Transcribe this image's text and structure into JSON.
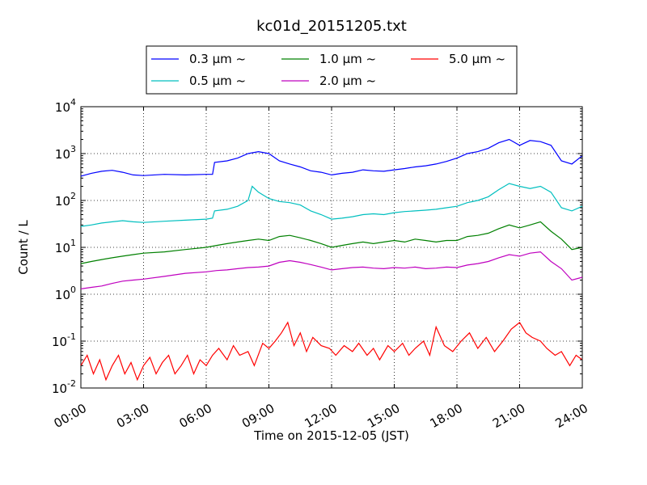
{
  "chart_data": {
    "type": "line",
    "title": "kc01d_20151205.txt",
    "xlabel": "Time on 2015-12-05 (JST)",
    "ylabel": "Count / L",
    "x_unit": "hours",
    "xlim": [
      0,
      24
    ],
    "ylim": [
      0.01,
      10000
    ],
    "yscale": "log",
    "grid": true,
    "legend_position": "top-center",
    "x_tick_labels": [
      "00:00",
      "03:00",
      "06:00",
      "09:00",
      "12:00",
      "15:00",
      "18:00",
      "21:00",
      "24:00"
    ],
    "y_tick_labels": [
      {
        "base": "10",
        "exp": "-2"
      },
      {
        "base": "10",
        "exp": "-1"
      },
      {
        "base": "10",
        "exp": "0"
      },
      {
        "base": "10",
        "exp": "1"
      },
      {
        "base": "10",
        "exp": "2"
      },
      {
        "base": "10",
        "exp": "3"
      },
      {
        "base": "10",
        "exp": "4"
      }
    ],
    "series": [
      {
        "name": "0.3 μm ~",
        "color": "#0000ff",
        "points": [
          [
            0,
            330
          ],
          [
            0.5,
            380
          ],
          [
            1,
            420
          ],
          [
            1.5,
            440
          ],
          [
            2,
            400
          ],
          [
            2.5,
            350
          ],
          [
            3,
            340
          ],
          [
            4,
            360
          ],
          [
            5,
            350
          ],
          [
            6,
            360
          ],
          [
            6.3,
            360
          ],
          [
            6.4,
            650
          ],
          [
            7,
            700
          ],
          [
            7.5,
            800
          ],
          [
            8,
            1000
          ],
          [
            8.5,
            1100
          ],
          [
            9,
            1000
          ],
          [
            9.5,
            700
          ],
          [
            10,
            600
          ],
          [
            10.5,
            520
          ],
          [
            11,
            430
          ],
          [
            11.5,
            400
          ],
          [
            12,
            350
          ],
          [
            12.5,
            380
          ],
          [
            13,
            400
          ],
          [
            13.5,
            450
          ],
          [
            14,
            430
          ],
          [
            14.5,
            420
          ],
          [
            15,
            450
          ],
          [
            15.5,
            480
          ],
          [
            16,
            520
          ],
          [
            16.5,
            550
          ],
          [
            17,
            600
          ],
          [
            17.5,
            680
          ],
          [
            18,
            800
          ],
          [
            18.5,
            1000
          ],
          [
            19,
            1100
          ],
          [
            19.5,
            1300
          ],
          [
            20,
            1700
          ],
          [
            20.5,
            2000
          ],
          [
            21,
            1500
          ],
          [
            21.5,
            1900
          ],
          [
            22,
            1800
          ],
          [
            22.5,
            1500
          ],
          [
            23,
            700
          ],
          [
            23.5,
            600
          ],
          [
            24,
            900
          ]
        ]
      },
      {
        "name": "0.5 μm ~",
        "color": "#00bfbf",
        "points": [
          [
            0,
            28
          ],
          [
            0.5,
            30
          ],
          [
            1,
            33
          ],
          [
            1.5,
            35
          ],
          [
            2,
            37
          ],
          [
            2.5,
            35
          ],
          [
            3,
            34
          ],
          [
            4,
            36
          ],
          [
            5,
            38
          ],
          [
            6,
            40
          ],
          [
            6.3,
            42
          ],
          [
            6.4,
            60
          ],
          [
            7,
            65
          ],
          [
            7.5,
            75
          ],
          [
            8,
            100
          ],
          [
            8.2,
            200
          ],
          [
            8.5,
            150
          ],
          [
            9,
            110
          ],
          [
            9.5,
            95
          ],
          [
            10,
            90
          ],
          [
            10.5,
            80
          ],
          [
            11,
            60
          ],
          [
            11.5,
            50
          ],
          [
            12,
            40
          ],
          [
            12.5,
            42
          ],
          [
            13,
            45
          ],
          [
            13.5,
            50
          ],
          [
            14,
            52
          ],
          [
            14.5,
            50
          ],
          [
            15,
            55
          ],
          [
            15.5,
            58
          ],
          [
            16,
            60
          ],
          [
            16.5,
            62
          ],
          [
            17,
            65
          ],
          [
            17.5,
            70
          ],
          [
            18,
            75
          ],
          [
            18.5,
            90
          ],
          [
            19,
            100
          ],
          [
            19.5,
            120
          ],
          [
            20,
            170
          ],
          [
            20.5,
            230
          ],
          [
            21,
            200
          ],
          [
            21.5,
            180
          ],
          [
            22,
            200
          ],
          [
            22.5,
            150
          ],
          [
            23,
            70
          ],
          [
            23.5,
            60
          ],
          [
            24,
            75
          ]
        ]
      },
      {
        "name": "1.0 μm ~",
        "color": "#008000",
        "points": [
          [
            0,
            4.5
          ],
          [
            0.5,
            5
          ],
          [
            1,
            5.5
          ],
          [
            1.5,
            6
          ],
          [
            2,
            6.5
          ],
          [
            2.5,
            7
          ],
          [
            3,
            7.5
          ],
          [
            4,
            8
          ],
          [
            5,
            9
          ],
          [
            6,
            10
          ],
          [
            6.5,
            11
          ],
          [
            7,
            12
          ],
          [
            7.5,
            13
          ],
          [
            8,
            14
          ],
          [
            8.5,
            15
          ],
          [
            9,
            14
          ],
          [
            9.5,
            17
          ],
          [
            10,
            18
          ],
          [
            10.5,
            16
          ],
          [
            11,
            14
          ],
          [
            11.5,
            12
          ],
          [
            12,
            10
          ],
          [
            12.5,
            11
          ],
          [
            13,
            12
          ],
          [
            13.5,
            13
          ],
          [
            14,
            12
          ],
          [
            14.5,
            13
          ],
          [
            15,
            14
          ],
          [
            15.5,
            13
          ],
          [
            16,
            15
          ],
          [
            16.5,
            14
          ],
          [
            17,
            13
          ],
          [
            17.5,
            14
          ],
          [
            18,
            14
          ],
          [
            18.5,
            17
          ],
          [
            19,
            18
          ],
          [
            19.5,
            20
          ],
          [
            20,
            25
          ],
          [
            20.5,
            30
          ],
          [
            21,
            26
          ],
          [
            21.5,
            30
          ],
          [
            22,
            35
          ],
          [
            22.5,
            22
          ],
          [
            23,
            15
          ],
          [
            23.5,
            9
          ],
          [
            24,
            10
          ]
        ]
      },
      {
        "name": "2.0 μm ~",
        "color": "#bf00bf",
        "points": [
          [
            0,
            1.3
          ],
          [
            0.5,
            1.4
          ],
          [
            1,
            1.5
          ],
          [
            1.5,
            1.7
          ],
          [
            2,
            1.9
          ],
          [
            2.5,
            2.0
          ],
          [
            3,
            2.1
          ],
          [
            4,
            2.4
          ],
          [
            5,
            2.8
          ],
          [
            6,
            3.0
          ],
          [
            6.5,
            3.2
          ],
          [
            7,
            3.3
          ],
          [
            7.5,
            3.5
          ],
          [
            8,
            3.7
          ],
          [
            8.5,
            3.8
          ],
          [
            9,
            4.0
          ],
          [
            9.5,
            4.8
          ],
          [
            10,
            5.2
          ],
          [
            10.5,
            4.8
          ],
          [
            11,
            4.3
          ],
          [
            11.5,
            3.8
          ],
          [
            12,
            3.3
          ],
          [
            12.5,
            3.5
          ],
          [
            13,
            3.7
          ],
          [
            13.5,
            3.8
          ],
          [
            14,
            3.6
          ],
          [
            14.5,
            3.5
          ],
          [
            15,
            3.7
          ],
          [
            15.5,
            3.6
          ],
          [
            16,
            3.8
          ],
          [
            16.5,
            3.5
          ],
          [
            17,
            3.6
          ],
          [
            17.5,
            3.8
          ],
          [
            18,
            3.7
          ],
          [
            18.5,
            4.2
          ],
          [
            19,
            4.5
          ],
          [
            19.5,
            5.0
          ],
          [
            20,
            6.0
          ],
          [
            20.5,
            7.0
          ],
          [
            21,
            6.5
          ],
          [
            21.5,
            7.5
          ],
          [
            22,
            8.0
          ],
          [
            22.5,
            5.0
          ],
          [
            23,
            3.5
          ],
          [
            23.5,
            2.0
          ],
          [
            24,
            2.3
          ]
        ]
      },
      {
        "name": "5.0 μm ~",
        "color": "#ff0000",
        "points": [
          [
            0,
            0.03
          ],
          [
            0.3,
            0.05
          ],
          [
            0.6,
            0.02
          ],
          [
            0.9,
            0.04
          ],
          [
            1.2,
            0.015
          ],
          [
            1.5,
            0.03
          ],
          [
            1.8,
            0.05
          ],
          [
            2.1,
            0.02
          ],
          [
            2.4,
            0.035
          ],
          [
            2.7,
            0.015
          ],
          [
            3,
            0.03
          ],
          [
            3.3,
            0.045
          ],
          [
            3.6,
            0.02
          ],
          [
            3.9,
            0.035
          ],
          [
            4.2,
            0.05
          ],
          [
            4.5,
            0.02
          ],
          [
            4.8,
            0.03
          ],
          [
            5.1,
            0.05
          ],
          [
            5.4,
            0.02
          ],
          [
            5.7,
            0.04
          ],
          [
            6,
            0.03
          ],
          [
            6.3,
            0.05
          ],
          [
            6.6,
            0.07
          ],
          [
            7,
            0.04
          ],
          [
            7.3,
            0.08
          ],
          [
            7.6,
            0.05
          ],
          [
            8,
            0.06
          ],
          [
            8.3,
            0.03
          ],
          [
            8.7,
            0.09
          ],
          [
            9,
            0.07
          ],
          [
            9.3,
            0.1
          ],
          [
            9.6,
            0.15
          ],
          [
            9.9,
            0.25
          ],
          [
            10.2,
            0.08
          ],
          [
            10.5,
            0.15
          ],
          [
            10.8,
            0.06
          ],
          [
            11.1,
            0.12
          ],
          [
            11.5,
            0.08
          ],
          [
            11.9,
            0.07
          ],
          [
            12.2,
            0.05
          ],
          [
            12.6,
            0.08
          ],
          [
            13,
            0.06
          ],
          [
            13.3,
            0.09
          ],
          [
            13.7,
            0.05
          ],
          [
            14,
            0.07
          ],
          [
            14.3,
            0.04
          ],
          [
            14.7,
            0.08
          ],
          [
            15,
            0.06
          ],
          [
            15.4,
            0.09
          ],
          [
            15.7,
            0.05
          ],
          [
            16,
            0.07
          ],
          [
            16.4,
            0.1
          ],
          [
            16.7,
            0.05
          ],
          [
            17,
            0.2
          ],
          [
            17.4,
            0.08
          ],
          [
            17.8,
            0.06
          ],
          [
            18.2,
            0.1
          ],
          [
            18.6,
            0.15
          ],
          [
            19,
            0.07
          ],
          [
            19.4,
            0.12
          ],
          [
            19.8,
            0.06
          ],
          [
            20.2,
            0.1
          ],
          [
            20.6,
            0.18
          ],
          [
            21,
            0.25
          ],
          [
            21.3,
            0.15
          ],
          [
            21.6,
            0.12
          ],
          [
            22,
            0.1
          ],
          [
            22.3,
            0.07
          ],
          [
            22.7,
            0.05
          ],
          [
            23,
            0.06
          ],
          [
            23.4,
            0.03
          ],
          [
            23.7,
            0.05
          ],
          [
            24,
            0.04
          ]
        ]
      }
    ]
  }
}
